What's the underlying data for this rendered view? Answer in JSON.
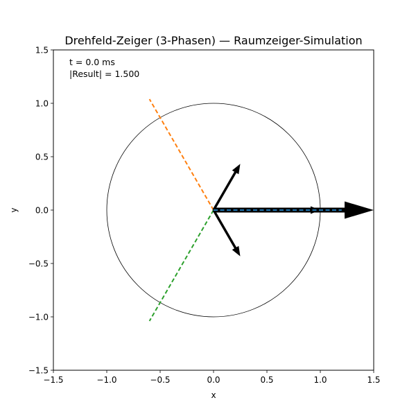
{
  "chart_data": {
    "type": "line",
    "title": "Drehfeld-Zeiger (3-Phasen) — Raumzeiger-Simulation",
    "xlabel": "x",
    "ylabel": "y",
    "xlim": [
      -1.5,
      1.5
    ],
    "ylim": [
      -1.5,
      1.5
    ],
    "xticks": [
      -1.5,
      -1.0,
      -0.5,
      0.0,
      0.5,
      1.0,
      1.5
    ],
    "yticks": [
      -1.5,
      -1.0,
      -0.5,
      0.0,
      0.5,
      1.0,
      1.5
    ],
    "xtick_labels": [
      "−1.5",
      "−1.0",
      "−0.5",
      "0.0",
      "0.5",
      "1.0",
      "1.5"
    ],
    "ytick_labels": [
      "−1.5",
      "−1.0",
      "−0.5",
      "0.0",
      "0.5",
      "1.0",
      "1.5"
    ],
    "grid": false,
    "unit_circle_radius": 1.0,
    "axis_lines": [
      {
        "color": "#1f77b4",
        "angle_deg": 0,
        "from": [
          0,
          0
        ],
        "to": [
          1.2,
          0
        ]
      },
      {
        "color": "#ff7f0e",
        "angle_deg": 120,
        "from": [
          0,
          0
        ],
        "to": [
          -0.6,
          1.039
        ]
      },
      {
        "color": "#2ca02c",
        "angle_deg": 240,
        "from": [
          0,
          0
        ],
        "to": [
          -0.6,
          -1.039
        ]
      }
    ],
    "phase_vectors": [
      {
        "x": 1.0,
        "y": 0.0
      },
      {
        "x": 0.25,
        "y": 0.433
      },
      {
        "x": 0.25,
        "y": -0.433
      }
    ],
    "result_vector": {
      "x": 1.5,
      "y": 0.0
    },
    "annotations": [
      "t = 0.0 ms",
      "|Result| = 1.500"
    ]
  }
}
